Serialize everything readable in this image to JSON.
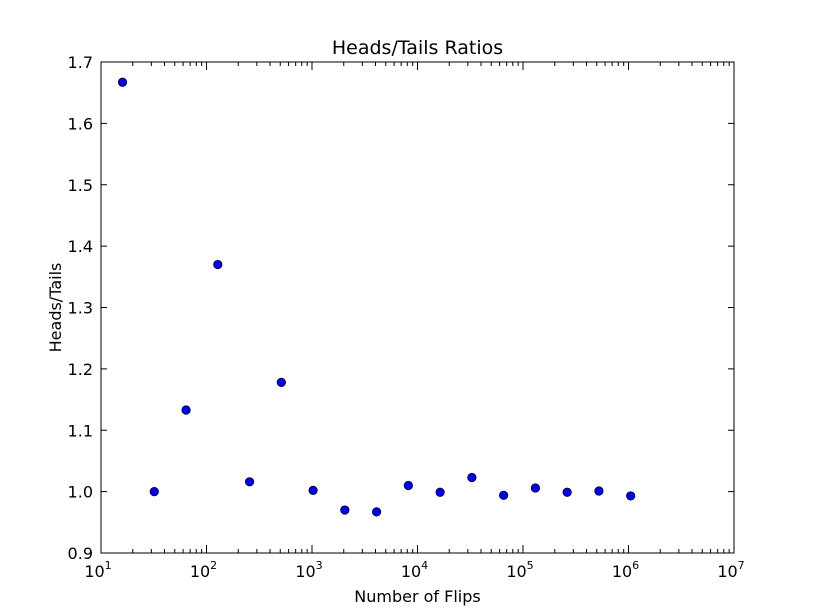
{
  "chart_data": {
    "type": "scatter",
    "title": "Heads/Tails Ratios",
    "xlabel": "Number of Flips",
    "ylabel": "Heads/Tails",
    "x_scale": "log",
    "xlim": [
      10,
      10000000
    ],
    "ylim": [
      0.9,
      1.7
    ],
    "x_ticks": [
      {
        "value": 10,
        "base": "10",
        "exp": "1"
      },
      {
        "value": 100,
        "base": "10",
        "exp": "2"
      },
      {
        "value": 1000,
        "base": "10",
        "exp": "3"
      },
      {
        "value": 10000,
        "base": "10",
        "exp": "4"
      },
      {
        "value": 100000,
        "base": "10",
        "exp": "5"
      },
      {
        "value": 1000000,
        "base": "10",
        "exp": "6"
      },
      {
        "value": 10000000,
        "base": "10",
        "exp": "7"
      }
    ],
    "y_ticks": [
      {
        "value": 0.9,
        "label": "0.9"
      },
      {
        "value": 1.0,
        "label": "1.0"
      },
      {
        "value": 1.1,
        "label": "1.1"
      },
      {
        "value": 1.2,
        "label": "1.2"
      },
      {
        "value": 1.3,
        "label": "1.3"
      },
      {
        "value": 1.4,
        "label": "1.4"
      },
      {
        "value": 1.5,
        "label": "1.5"
      },
      {
        "value": 1.6,
        "label": "1.6"
      },
      {
        "value": 1.7,
        "label": "1.7"
      }
    ],
    "grid": false,
    "marker_color": "#0000ff",
    "series": [
      {
        "x": [
          16,
          32,
          64,
          128,
          256,
          512,
          1024,
          2048,
          4096,
          8192,
          16384,
          32768,
          65536,
          131072,
          262144,
          524288,
          1048576
        ],
        "y": [
          1.667,
          1.0,
          1.133,
          1.37,
          1.016,
          1.178,
          1.002,
          0.97,
          0.967,
          1.01,
          0.999,
          1.023,
          0.994,
          1.006,
          0.999,
          1.001,
          0.993
        ]
      }
    ]
  }
}
